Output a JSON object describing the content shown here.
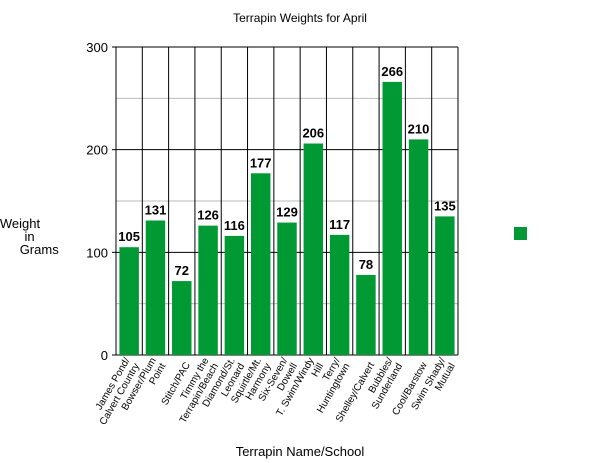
{
  "chart_data": {
    "type": "bar",
    "title": "Terrapin Weights for April",
    "x_label": "Terrapin Name/School",
    "y_label": "Weight\nin\nGrams",
    "categories": [
      "James Pond/\nCalvert Country",
      "Bowser/Plum\nPoint",
      "Stitch/PAC",
      "Timmy the\nTerrapin/Beach",
      "Diamond/St.\nLeonard",
      "Squirtle/Mt.\nHarmony",
      "Six-Seven/\nDowell",
      "T. Swim/Windy\nHill",
      "Terry/\nHuntingtown",
      "Shelley/Calvert",
      "Bubbles/\nSunderland",
      "Cool/Barstow",
      "Swim Shady/\nMutual"
    ],
    "values": [
      105,
      131,
      72,
      126,
      116,
      177,
      129,
      206,
      117,
      78,
      266,
      210,
      135
    ],
    "color": "#009933",
    "ylim": [
      0,
      300
    ],
    "yticks": [
      0,
      100,
      200,
      300
    ],
    "minor_yticks": [
      50,
      150,
      250
    ],
    "grid": true,
    "legend": "right"
  }
}
